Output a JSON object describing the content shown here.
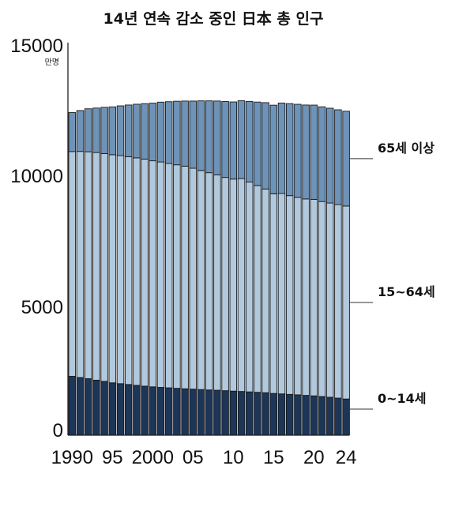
{
  "chart_data": {
    "type": "bar",
    "stacked": true,
    "title": "14년 연속 감소 중인 日本 총 인구",
    "unit": "만명",
    "ylim": [
      0,
      15000
    ],
    "yticks": [
      "15000",
      "10000",
      "5000",
      "0"
    ],
    "ytick_values": [
      15000,
      10000,
      5000,
      0
    ],
    "xtick_labels": [
      "1990",
      "95",
      "2000",
      "05",
      "10",
      "15",
      "20",
      "24"
    ],
    "xtick_years": [
      1990,
      1995,
      2000,
      2005,
      2010,
      2015,
      2020,
      2024
    ],
    "x": [
      1990,
      1991,
      1992,
      1993,
      1994,
      1995,
      1996,
      1997,
      1998,
      1999,
      2000,
      2001,
      2002,
      2003,
      2004,
      2005,
      2006,
      2007,
      2008,
      2009,
      2010,
      2011,
      2012,
      2013,
      2014,
      2015,
      2016,
      2017,
      2018,
      2019,
      2020,
      2021,
      2022,
      2023,
      2024
    ],
    "series": [
      {
        "name": "0~14세",
        "color": "#1d3557",
        "values": [
          2249,
          2204,
          2160,
          2101,
          2058,
          2001,
          1968,
          1937,
          1904,
          1874,
          1847,
          1826,
          1810,
          1791,
          1773,
          1759,
          1743,
          1729,
          1718,
          1701,
          1684,
          1671,
          1655,
          1639,
          1623,
          1595,
          1578,
          1559,
          1542,
          1521,
          1503,
          1478,
          1450,
          1417,
          1383
        ]
      },
      {
        "name": "15~64세",
        "color": "#b2c9dd",
        "values": [
          8590,
          8640,
          8670,
          8700,
          8703,
          8717,
          8716,
          8704,
          8692,
          8676,
          8638,
          8614,
          8571,
          8540,
          8508,
          8442,
          8373,
          8301,
          8230,
          8149,
          8103,
          8134,
          8018,
          7901,
          7785,
          7629,
          7656,
          7596,
          7545,
          7507,
          7509,
          7450,
          7421,
          7395,
          7372
        ]
      },
      {
        "name": "65세 이상",
        "color": "#6d93b9",
        "values": [
          1489,
          1562,
          1643,
          1700,
          1768,
          1828,
          1901,
          1976,
          2051,
          2119,
          2204,
          2287,
          2363,
          2431,
          2488,
          2567,
          2660,
          2746,
          2822,
          2901,
          2948,
          2975,
          3079,
          3190,
          3300,
          3387,
          3459,
          3515,
          3558,
          3589,
          3602,
          3621,
          3624,
          3623,
          3625
        ]
      }
    ],
    "legend": [
      {
        "label": "65세 이상",
        "series": 2
      },
      {
        "label": "15~64세",
        "series": 1
      },
      {
        "label": "0~14세",
        "series": 0
      }
    ]
  }
}
